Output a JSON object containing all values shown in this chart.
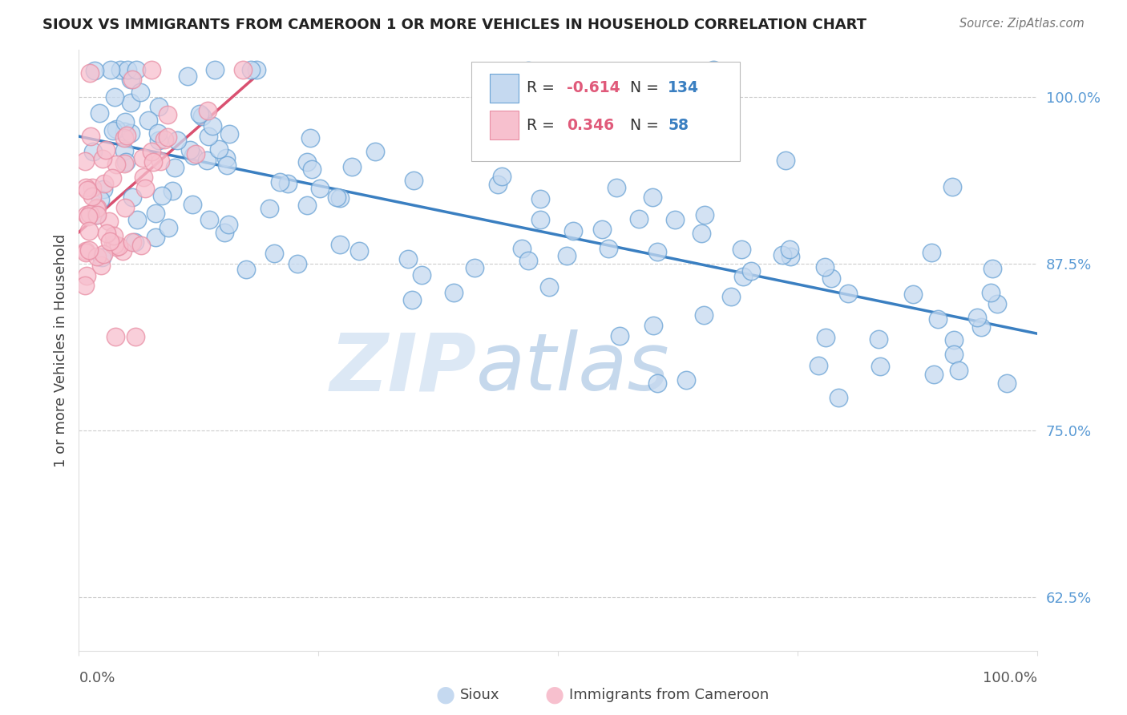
{
  "title": "SIOUX VS IMMIGRANTS FROM CAMEROON 1 OR MORE VEHICLES IN HOUSEHOLD CORRELATION CHART",
  "source": "Source: ZipAtlas.com",
  "ylabel": "1 or more Vehicles in Household",
  "yticks": [
    0.625,
    0.75,
    0.875,
    1.0
  ],
  "ytick_labels": [
    "62.5%",
    "75.0%",
    "87.5%",
    "100.0%"
  ],
  "xlim": [
    0.0,
    1.0
  ],
  "ylim": [
    0.585,
    1.035
  ],
  "blue_R": -0.614,
  "blue_N": 134,
  "pink_R": 0.346,
  "pink_N": 58,
  "blue_scatter_face": "#c5d9f0",
  "blue_scatter_edge": "#6aa3d5",
  "pink_scatter_face": "#f7c0ce",
  "pink_scatter_edge": "#e88ea4",
  "blue_line_color": "#3a7fc1",
  "pink_line_color": "#d95070",
  "R_color": "#e05a7a",
  "N_color": "#3a7fc1",
  "legend_label_blue": "Sioux",
  "legend_label_pink": "Immigrants from Cameroon",
  "title_color": "#222222",
  "axis_tick_color": "#5b9bd5",
  "grid_color": "#cccccc",
  "background_color": "#ffffff",
  "blue_trendline_start_x": 0.0,
  "blue_trendline_end_x": 1.0,
  "blue_trendline_start_y": 0.965,
  "blue_trendline_end_y": 0.818,
  "pink_trendline_start_x": 0.0,
  "pink_trendline_end_x": 0.16,
  "pink_trendline_start_y": 0.907,
  "pink_trendline_end_y": 0.96
}
